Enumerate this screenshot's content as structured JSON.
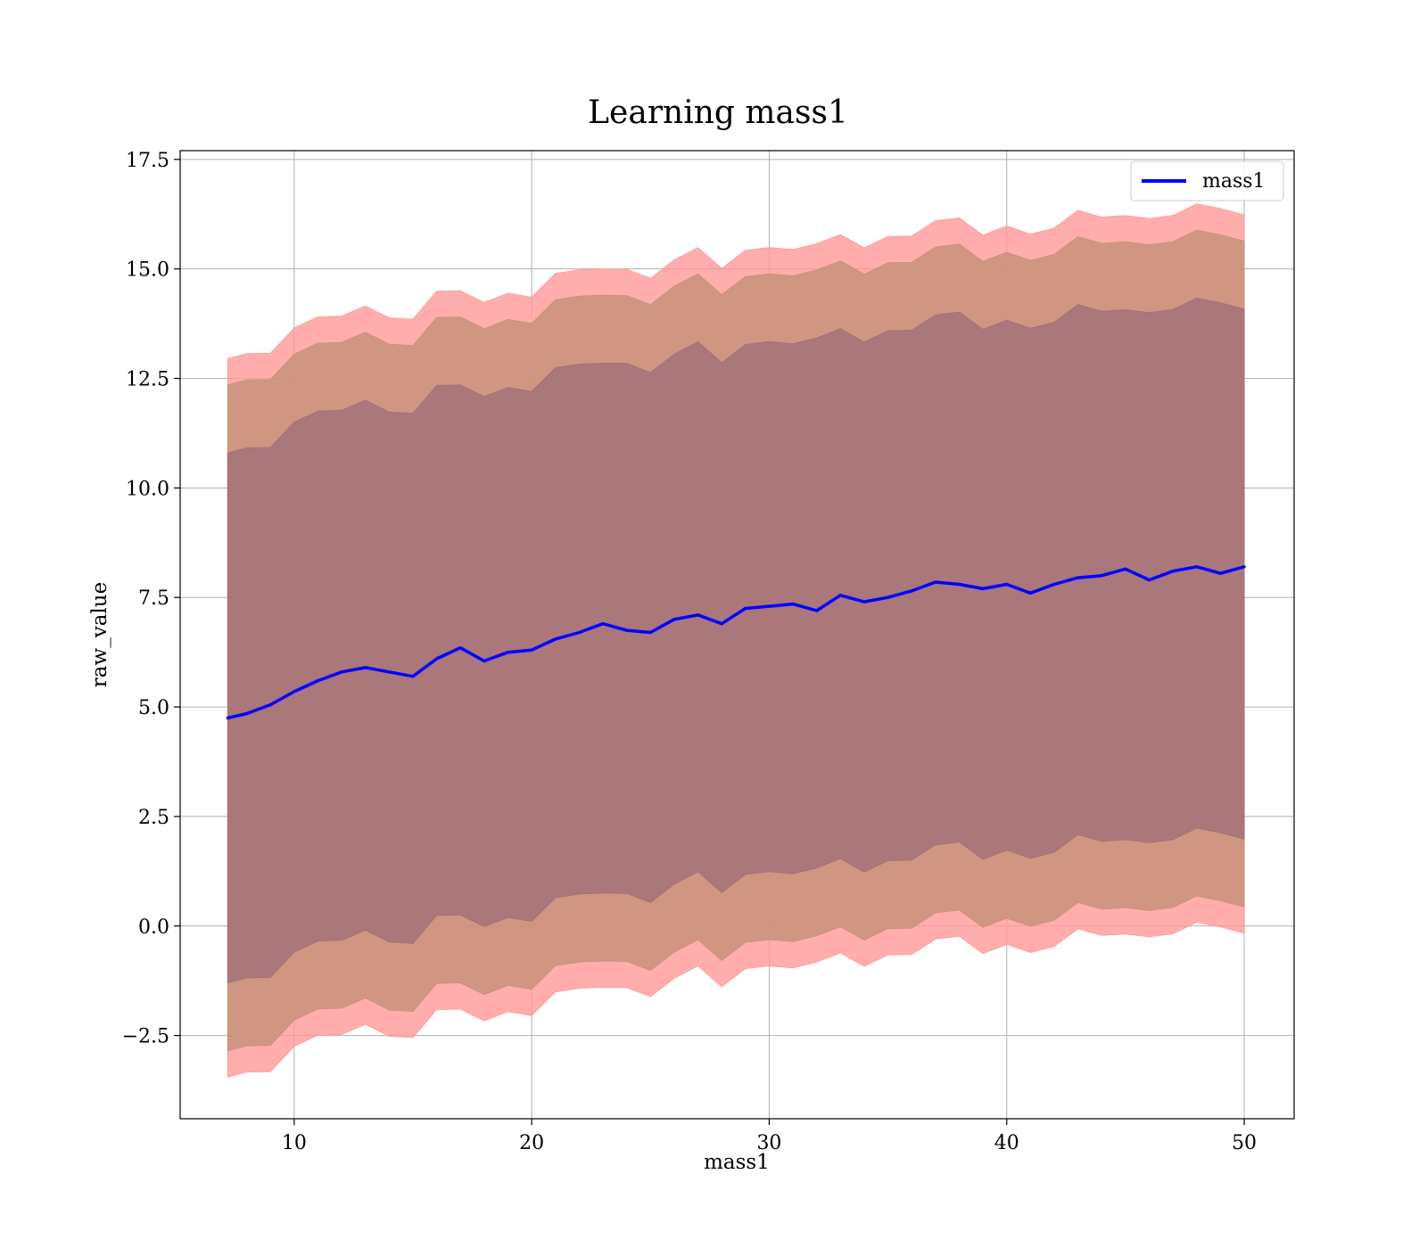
{
  "chart_data": {
    "type": "line",
    "title": "Learning mass1",
    "xlabel": "mass1",
    "ylabel": "raw_value",
    "xlim": [
      5.2,
      52.1
    ],
    "ylim": [
      -4.4,
      17.7
    ],
    "grid": true,
    "legend": {
      "placement": "top-right",
      "entries": [
        "mass1"
      ]
    },
    "xticks": [
      {
        "value": 10,
        "label": "10"
      },
      {
        "value": 20,
        "label": "20"
      },
      {
        "value": 30,
        "label": "30"
      },
      {
        "value": 40,
        "label": "40"
      },
      {
        "value": 50,
        "label": "50"
      }
    ],
    "yticks": [
      {
        "value": -2.5,
        "label": "−2.5"
      },
      {
        "value": 0,
        "label": "0.0"
      },
      {
        "value": 2.5,
        "label": "2.5"
      },
      {
        "value": 5,
        "label": "5.0"
      },
      {
        "value": 7.5,
        "label": "7.5"
      },
      {
        "value": 10,
        "label": "10.0"
      },
      {
        "value": 12.5,
        "label": "12.5"
      },
      {
        "value": 15,
        "label": "15.0"
      },
      {
        "value": 17.5,
        "label": "17.5"
      }
    ],
    "x": [
      7.2,
      8.0,
      9.0,
      10.0,
      11.0,
      12.0,
      13.0,
      14.0,
      15.0,
      16.0,
      17.0,
      18.0,
      19.0,
      20.0,
      21.0,
      22.0,
      23.0,
      24.0,
      25.0,
      26.0,
      27.0,
      28.0,
      29.0,
      30.0,
      31.0,
      32.0,
      33.0,
      34.0,
      35.0,
      36.0,
      37.0,
      38.0,
      39.0,
      40.0,
      41.0,
      42.0,
      43.0,
      44.0,
      45.0,
      46.0,
      47.0,
      48.0,
      49.0,
      50.0
    ],
    "series": [
      {
        "name": "mass1",
        "color": "#0000ff",
        "values": [
          4.75,
          4.85,
          5.05,
          5.35,
          5.6,
          5.8,
          5.9,
          5.8,
          5.7,
          6.1,
          6.35,
          6.05,
          6.25,
          6.3,
          6.55,
          6.7,
          6.9,
          6.75,
          6.7,
          7.0,
          7.1,
          6.9,
          7.25,
          7.3,
          7.35,
          7.2,
          7.55,
          7.4,
          7.5,
          7.65,
          7.85,
          7.8,
          7.7,
          7.8,
          7.6,
          7.8,
          7.95,
          8.0,
          8.15,
          7.9,
          8.1,
          8.2,
          8.05,
          8.2
        ]
      }
    ],
    "bands": [
      {
        "name": "outer",
        "color": "#ff9999",
        "lower_offset": -8.2,
        "upper_offset": 8.2
      },
      {
        "name": "middle",
        "color": "#c59076",
        "lower_offset": -7.6,
        "upper_offset": 7.6
      },
      {
        "name": "inner",
        "color": "#a06f79",
        "lower_offset": -6.05,
        "upper_offset": 6.05
      }
    ]
  }
}
